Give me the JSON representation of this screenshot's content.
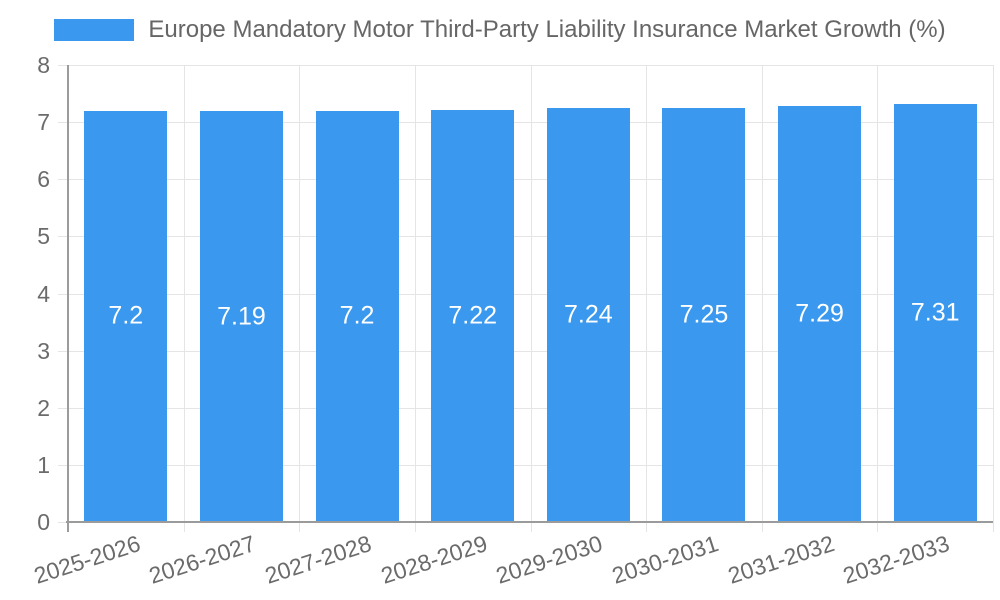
{
  "legend": {
    "label": "Europe Mandatory Motor Third-Party Liability Insurance Market Growth (%)"
  },
  "chart_data": {
    "type": "bar",
    "title": "Europe Mandatory Motor Third-Party Liability Insurance Market Growth (%)",
    "categories": [
      "2025-2026",
      "2026-2027",
      "2027-2028",
      "2028-2029",
      "2029-2030",
      "2030-2031",
      "2031-2032",
      "2032-2033"
    ],
    "values": [
      7.2,
      7.19,
      7.2,
      7.22,
      7.24,
      7.25,
      7.29,
      7.31
    ],
    "value_labels": [
      "7.2",
      "7.19",
      "7.2",
      "7.22",
      "7.24",
      "7.25",
      "7.29",
      "7.31"
    ],
    "xlabel": "",
    "ylabel": "",
    "ylim": [
      0,
      8
    ],
    "yticks": [
      0,
      1,
      2,
      3,
      4,
      5,
      6,
      7,
      8
    ],
    "grid": true,
    "legend_position": "top",
    "colors": {
      "bar": "#3A99EF",
      "grid": "#e5e5e5",
      "axis": "#9b9b9b",
      "tick_text": "#6b6b6b",
      "legend_text": "#666666",
      "value_text": "#ffffff",
      "background": "#ffffff"
    }
  }
}
